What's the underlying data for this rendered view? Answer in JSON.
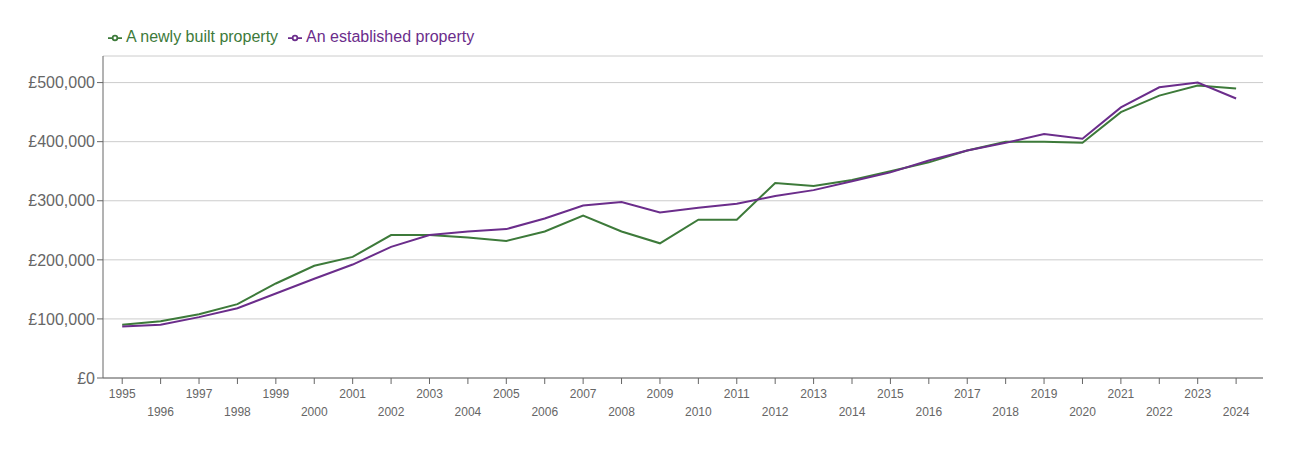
{
  "chart_data": {
    "type": "line",
    "x": [
      1995,
      1996,
      1997,
      1998,
      1999,
      2000,
      2001,
      2002,
      2003,
      2004,
      2005,
      2006,
      2007,
      2008,
      2009,
      2010,
      2011,
      2012,
      2013,
      2014,
      2015,
      2016,
      2017,
      2018,
      2019,
      2020,
      2021,
      2022,
      2023,
      2024
    ],
    "series": [
      {
        "name": "A newly built property",
        "color": "#3d7a3a",
        "values": [
          90000,
          96000,
          108000,
          125000,
          160000,
          190000,
          205000,
          242000,
          242000,
          238000,
          232000,
          248000,
          275000,
          248000,
          228000,
          268000,
          268000,
          330000,
          325000,
          335000,
          350000,
          365000,
          385000,
          400000,
          400000,
          398000,
          450000,
          478000,
          495000,
          490000
        ]
      },
      {
        "name": "An established property",
        "color": "#6b2d8b",
        "values": [
          87000,
          90000,
          103000,
          118000,
          143000,
          168000,
          192000,
          222000,
          242000,
          248000,
          252000,
          270000,
          292000,
          298000,
          280000,
          288000,
          295000,
          308000,
          318000,
          333000,
          348000,
          368000,
          385000,
          398000,
          413000,
          405000,
          458000,
          492000,
          500000,
          473000
        ]
      }
    ],
    "xlim": [
      1994.5,
      2024.7
    ],
    "xticks": [
      1995,
      1996,
      1997,
      1998,
      1999,
      2000,
      2001,
      2002,
      2003,
      2004,
      2005,
      2006,
      2007,
      2008,
      2009,
      2010,
      2011,
      2012,
      2013,
      2014,
      2015,
      2016,
      2017,
      2018,
      2019,
      2020,
      2021,
      2022,
      2023,
      2024
    ],
    "ylim": [
      0,
      545000
    ],
    "yticks": [
      {
        "value": 0,
        "label": "£0"
      },
      {
        "value": 100000,
        "label": "£100,000"
      },
      {
        "value": 200000,
        "label": "£200,000"
      },
      {
        "value": 300000,
        "label": "£300,000"
      },
      {
        "value": 400000,
        "label": "£400,000"
      },
      {
        "value": 500000,
        "label": "£500,000"
      }
    ],
    "grid": true,
    "legend": "upper left"
  }
}
